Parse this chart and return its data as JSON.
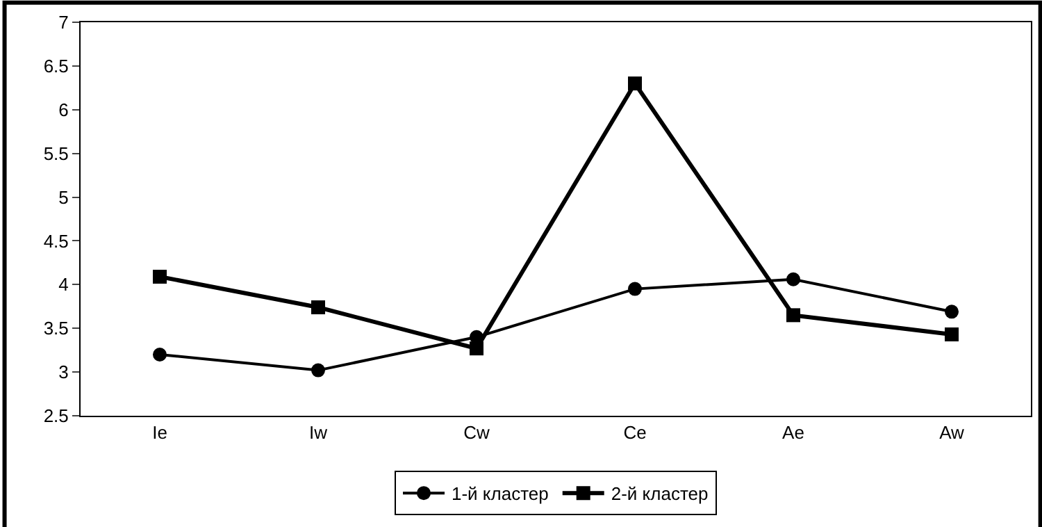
{
  "chart_data": {
    "type": "line",
    "categories": [
      "Ie",
      "Iw",
      "Cw",
      "Ce",
      "Ae",
      "Aw"
    ],
    "series": [
      {
        "name": "1-й кластер",
        "color": "#000000",
        "marker": "circle",
        "values": [
          3.2,
          3.02,
          3.4,
          3.95,
          4.06,
          3.69
        ]
      },
      {
        "name": "2-й кластер",
        "color": "#000000",
        "marker": "square",
        "values": [
          4.09,
          3.74,
          3.27,
          6.3,
          3.65,
          3.43
        ]
      }
    ],
    "ylim": [
      2.5,
      7
    ],
    "yticks": [
      2.5,
      3,
      3.5,
      4,
      4.5,
      5,
      5.5,
      6,
      6.5,
      7
    ],
    "grid": false,
    "legend": "bottom",
    "line_style": "solid"
  }
}
